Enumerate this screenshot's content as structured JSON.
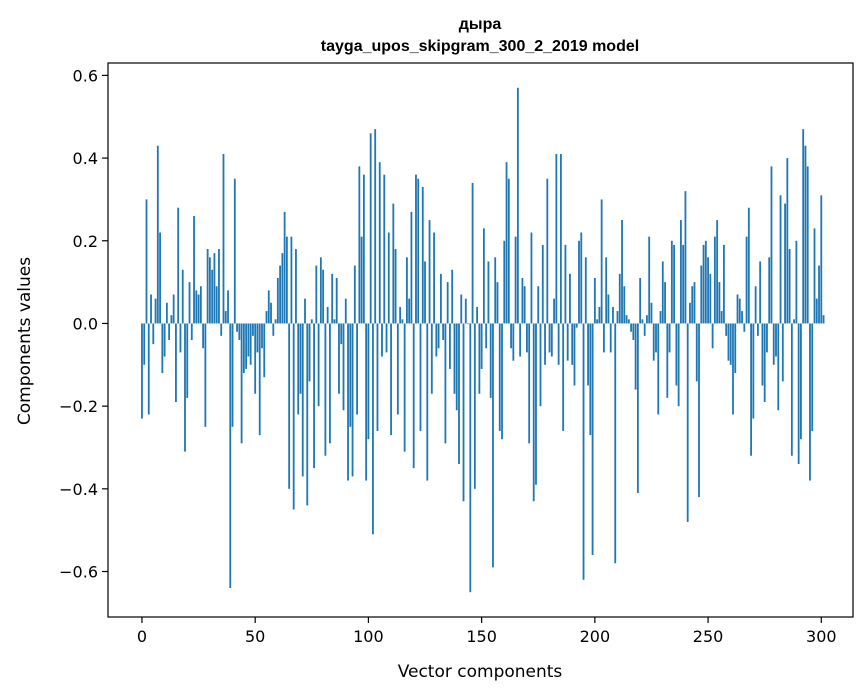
{
  "chart_data": {
    "type": "bar",
    "title": "дыра",
    "subtitle": "tayga_upos_skipgram_300_2_2019 model",
    "xlabel": "Vector components",
    "ylabel": "Components values",
    "xlim": [
      -15,
      314
    ],
    "ylim": [
      -0.71,
      0.63
    ],
    "xticks": [
      0,
      50,
      100,
      150,
      200,
      250,
      300
    ],
    "yticks": [
      -0.6,
      -0.4,
      -0.2,
      0.0,
      0.2,
      0.4,
      0.6
    ],
    "ytick_labels": [
      "−0.6",
      "−0.4",
      "−0.2",
      "0.0",
      "0.2",
      "0.4",
      "0.6"
    ],
    "bar_color": "#1f77b4",
    "grid": false,
    "values": [
      -0.23,
      -0.1,
      0.3,
      -0.22,
      0.07,
      -0.05,
      0.06,
      0.43,
      0.22,
      -0.12,
      -0.08,
      0.05,
      -0.04,
      0.02,
      0.07,
      -0.19,
      0.28,
      -0.07,
      0.13,
      -0.31,
      -0.18,
      0.1,
      -0.04,
      0.26,
      0.08,
      0.07,
      0.09,
      -0.06,
      -0.25,
      0.18,
      0.16,
      0.13,
      0.17,
      0.09,
      0.18,
      -0.03,
      0.41,
      0.03,
      0.08,
      -0.64,
      -0.25,
      0.35,
      -0.02,
      -0.04,
      -0.29,
      -0.12,
      -0.11,
      -0.08,
      -0.1,
      -0.03,
      -0.17,
      -0.07,
      -0.27,
      -0.06,
      -0.13,
      0.03,
      0.08,
      0.05,
      -0.03,
      0.01,
      0.11,
      0.14,
      0.17,
      0.27,
      0.21,
      -0.4,
      0.21,
      -0.45,
      0.18,
      -0.22,
      -0.17,
      -0.37,
      0.06,
      -0.44,
      -0.14,
      0.01,
      -0.35,
      0.14,
      -0.2,
      0.16,
      0.13,
      -0.32,
      0.04,
      -0.29,
      0.12,
      0.01,
      0.11,
      -0.17,
      -0.05,
      -0.21,
      0.06,
      -0.38,
      -0.25,
      -0.37,
      0.14,
      -0.22,
      0.38,
      0.21,
      0.36,
      -0.38,
      -0.28,
      0.46,
      -0.51,
      0.47,
      -0.26,
      0.39,
      -0.08,
      0.36,
      -0.07,
      0.22,
      -0.27,
      0.29,
      0.18,
      -0.22,
      0.04,
      0.01,
      -0.31,
      0.16,
      0.06,
      0.27,
      -0.35,
      0.36,
      0.35,
      -0.26,
      0.33,
      0.15,
      -0.38,
      0.25,
      -0.17,
      0.22,
      -0.08,
      -0.06,
      0.12,
      -0.04,
      -0.29,
      0.1,
      -0.11,
      0.13,
      -0.17,
      -0.21,
      -0.34,
      0.07,
      -0.43,
      0.06,
      0.0,
      -0.65,
      0.34,
      -0.4,
      0.04,
      -0.17,
      -0.11,
      0.23,
      -0.06,
      0.15,
      -0.18,
      -0.59,
      0.16,
      0.1,
      -0.26,
      -0.28,
      0.2,
      0.39,
      0.35,
      -0.06,
      -0.09,
      0.21,
      0.57,
      -0.08,
      0.11,
      0.09,
      -0.07,
      -0.29,
      0.22,
      -0.43,
      -0.39,
      0.09,
      -0.2,
      0.19,
      -0.1,
      0.35,
      -0.07,
      -0.08,
      0.06,
      0.41,
      -0.1,
      0.41,
      -0.26,
      0.19,
      -0.09,
      0.12,
      -0.1,
      -0.15,
      -0.01,
      0.2,
      0.22,
      -0.62,
      0.16,
      -0.15,
      -0.27,
      -0.56,
      0.11,
      0.01,
      0.04,
      0.3,
      -0.07,
      0.16,
      0.07,
      -0.07,
      0.04,
      -0.58,
      0.03,
      0.12,
      0.25,
      0.09,
      0.02,
      0.01,
      -0.02,
      -0.04,
      -0.16,
      -0.41,
      0.11,
      0.01,
      -0.03,
      0.02,
      0.21,
      0.05,
      -0.09,
      -0.07,
      -0.22,
      0.03,
      0.15,
      0.1,
      -0.18,
      -0.07,
      0.2,
      0.19,
      -0.15,
      -0.2,
      0.25,
      0.19,
      0.32,
      -0.48,
      0.05,
      0.09,
      0.1,
      -0.14,
      -0.42,
      0.14,
      0.19,
      0.2,
      0.16,
      0.12,
      -0.06,
      0.21,
      0.25,
      0.1,
      0.03,
      0.19,
      -0.03,
      -0.09,
      -0.1,
      -0.22,
      -0.12,
      0.07,
      0.06,
      0.03,
      -0.02,
      0.21,
      0.28,
      -0.32,
      -0.23,
      0.09,
      -0.03,
      0.15,
      -0.15,
      -0.19,
      -0.07,
      0.16,
      0.38,
      -0.1,
      -0.08,
      -0.21,
      0.31,
      -0.14,
      0.29,
      0.4,
      0.18,
      -0.32,
      0.01,
      0.2,
      -0.34,
      -0.28,
      0.47,
      0.43,
      0.38,
      -0.38,
      -0.26,
      0.23,
      0.06,
      0.14,
      0.31,
      0.02
    ]
  }
}
